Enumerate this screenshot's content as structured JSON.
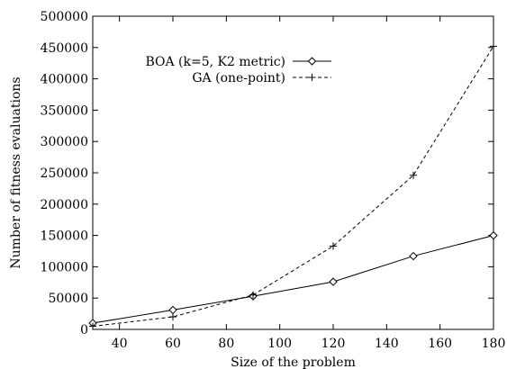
{
  "chart_data": {
    "type": "line",
    "title": "",
    "xlabel": "Size of the problem",
    "ylabel": "Number of fitness evaluations",
    "xlim": [
      30,
      180
    ],
    "ylim": [
      0,
      500000
    ],
    "x_ticks": [
      40,
      60,
      80,
      100,
      120,
      140,
      160,
      180
    ],
    "x_tick_labels": [
      "40",
      "60",
      "80",
      "100",
      "120",
      "140",
      "160",
      "180"
    ],
    "y_ticks": [
      0,
      50000,
      100000,
      150000,
      200000,
      250000,
      300000,
      350000,
      400000,
      450000,
      500000
    ],
    "y_tick_labels": [
      "0",
      "50000",
      "100000",
      "150000",
      "200000",
      "250000",
      "300000",
      "350000",
      "400000",
      "450000",
      "500000"
    ],
    "grid": false,
    "legend_position": "top-left",
    "series": [
      {
        "name": "BOA (k=5, K2 metric)",
        "marker": "diamond",
        "line_style": "solid",
        "color": "#000000",
        "x": [
          30,
          60,
          90,
          120,
          150,
          180
        ],
        "y": [
          10000,
          31000,
          53000,
          76000,
          117000,
          150000
        ]
      },
      {
        "name": "GA (one-point)",
        "marker": "plus",
        "line_style": "dashed",
        "color": "#000000",
        "x": [
          30,
          60,
          90,
          120,
          150,
          180
        ],
        "y": [
          5000,
          20000,
          55000,
          133000,
          246000,
          452000
        ]
      }
    ]
  }
}
